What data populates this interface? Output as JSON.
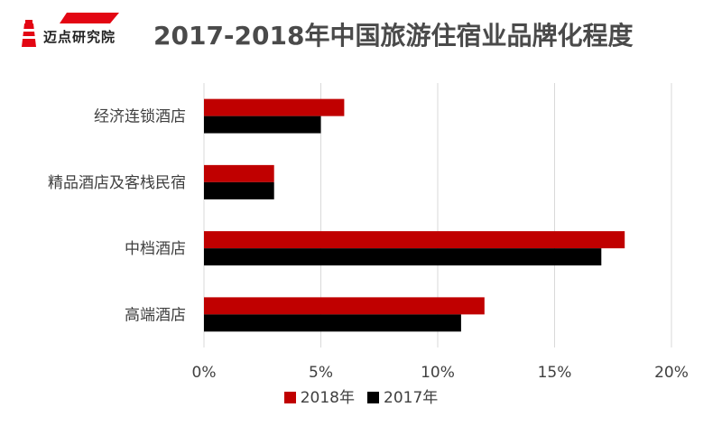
{
  "logo": {
    "text": "迈点研究院"
  },
  "colors": {
    "2018": "#c00000",
    "2017": "#000000",
    "grid": "#d9d9d9",
    "accent": "#e30613"
  },
  "chart_data": {
    "type": "bar",
    "orientation": "horizontal",
    "title": "2017-2018年中国旅游住宿业品牌化程度",
    "categories": [
      "经济连锁酒店",
      "精品酒店及客栈民宿",
      "中档酒店",
      "高端酒店"
    ],
    "series": [
      {
        "name": "2018年",
        "values": [
          6,
          3,
          18,
          12
        ]
      },
      {
        "name": "2017年",
        "values": [
          5,
          3,
          17,
          11
        ]
      }
    ],
    "xlim": [
      0,
      20
    ],
    "x_ticks": [
      "0%",
      "5%",
      "10%",
      "15%",
      "20%"
    ],
    "grid": true,
    "legend_position": "bottom"
  }
}
